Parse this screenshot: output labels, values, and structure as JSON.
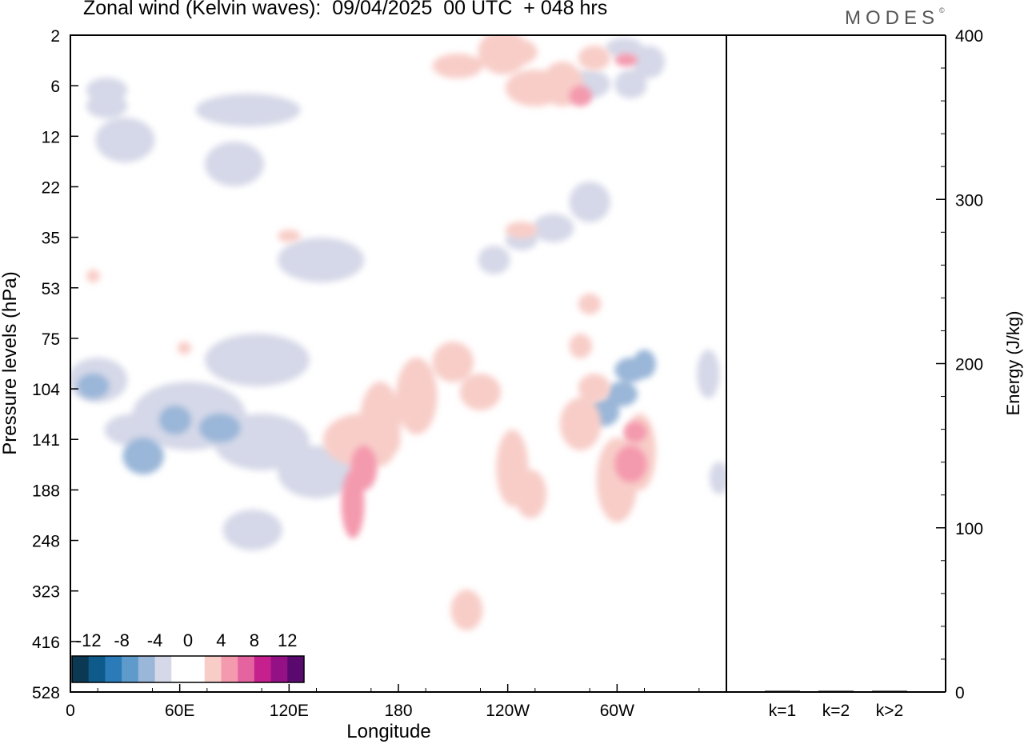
{
  "title": "Zonal wind (Kelvin waves):  09/04/2025  00 UTC  + 048 hrs",
  "logo": "MODES",
  "logo_mark": "©",
  "chart_data": [
    {
      "type": "heatmap",
      "title": "Zonal wind (Kelvin waves):  09/04/2025  00 UTC  + 048 hrs",
      "xlabel": "Longitude",
      "ylabel": "Pressure levels (hPa)",
      "x_ticks": [
        "0",
        "60E",
        "120E",
        "180",
        "120W",
        "60W"
      ],
      "x_tick_values": [
        0,
        60,
        120,
        180,
        240,
        300
      ],
      "xlim": [
        0,
        360
      ],
      "y_ticks": [
        "2",
        "6",
        "12",
        "22",
        "35",
        "53",
        "75",
        "104",
        "141",
        "188",
        "248",
        "323",
        "416",
        "528"
      ],
      "colorbar": {
        "labels": [
          "-12",
          "-8",
          "-4",
          "0",
          "4",
          "8",
          "12"
        ],
        "colors": [
          "#0b3954",
          "#0e5a8a",
          "#2b7bb9",
          "#5e9bcb",
          "#9ab6d8",
          "#d5d8e8",
          "#ffffff",
          "#ffffff",
          "#f8cdc8",
          "#f49aae",
          "#e5649f",
          "#c61f8e",
          "#941085",
          "#5a0a6e"
        ]
      },
      "fields": [
        {
          "value": -2,
          "color": "#d5d8e8",
          "cells": [
            [
              10,
              120,
              20,
              25
            ],
            [
              15,
              150,
              30,
              50
            ],
            [
              70,
              120,
              55,
              35
            ],
            [
              75,
              420,
              55,
              60
            ],
            [
              35,
              480,
              60,
              80
            ],
            [
              80,
              520,
              50,
              65
            ],
            [
              115,
              560,
              40,
              60
            ],
            [
              85,
              640,
              30,
              45
            ],
            [
              115,
              300,
              45,
              50
            ],
            [
              0,
              450,
              30,
              50
            ],
            [
              20,
              520,
              30,
              35
            ],
            [
              75,
              180,
              30,
              50
            ],
            [
              225,
              310,
              15,
              30
            ],
            [
              240,
              290,
              15,
              20
            ],
            [
              255,
              270,
              20,
              30
            ],
            [
              275,
              230,
              20,
              45
            ],
            [
              295,
              50,
              18,
              20
            ],
            [
              300,
              90,
              15,
              30
            ],
            [
              275,
              90,
              20,
              30
            ],
            [
              10,
              100,
              20,
              25
            ],
            [
              310,
              60,
              15,
              35
            ],
            [
              300,
              95,
              15,
              25
            ],
            [
              345,
              440,
              10,
              55
            ],
            [
              352,
              580,
              8,
              35
            ]
          ]
        },
        {
          "value": -6,
          "color": "#9ab6d8",
          "cells": [
            [
              30,
              550,
              20,
              40
            ],
            [
              50,
              510,
              15,
              30
            ],
            [
              72,
              520,
              20,
              30
            ],
            [
              5,
              470,
              15,
              25
            ],
            [
              285,
              500,
              15,
              30
            ],
            [
              295,
              480,
              15,
              25
            ],
            [
              300,
              450,
              15,
              25
            ],
            [
              310,
              440,
              10,
              30
            ]
          ]
        },
        {
          "value": 2,
          "color": "#f8cdc8",
          "cells": [
            [
              140,
              520,
              40,
              60
            ],
            [
              180,
              450,
              20,
              90
            ],
            [
              160,
              480,
              20,
              100
            ],
            [
              200,
              430,
              20,
              45
            ],
            [
              215,
              470,
              20,
              40
            ],
            [
              235,
              540,
              15,
              90
            ],
            [
              245,
              590,
              15,
              55
            ],
            [
              210,
              740,
              15,
              45
            ],
            [
              270,
              500,
              20,
              60
            ],
            [
              280,
              470,
              15,
              30
            ],
            [
              290,
              550,
              20,
              100
            ],
            [
              305,
              520,
              15,
              90
            ],
            [
              200,
              70,
              25,
              25
            ],
            [
              225,
              40,
              25,
              50
            ],
            [
              230,
              50,
              25,
              30
            ],
            [
              240,
              90,
              30,
              40
            ],
            [
              260,
              80,
              20,
              50
            ],
            [
              280,
              60,
              15,
              25
            ],
            [
              240,
              280,
              15,
              15
            ],
            [
              115,
              290,
              10,
              10
            ],
            [
              10,
              340,
              5,
              10
            ],
            [
              60,
              430,
              5,
              10
            ],
            [
              280,
              370,
              10,
              20
            ],
            [
              275,
              420,
              10,
              25
            ]
          ]
        },
        {
          "value": 6,
          "color": "#f49aae",
          "cells": [
            [
              150,
              590,
              10,
              80
            ],
            [
              155,
              560,
              12,
              50
            ],
            [
              300,
              560,
              15,
              40
            ],
            [
              305,
              530,
              10,
              20
            ],
            [
              275,
              110,
              10,
              20
            ],
            [
              300,
              70,
              10,
              10
            ]
          ]
        }
      ]
    },
    {
      "type": "bar",
      "categories": [
        "k=1",
        "k=2",
        "k>2"
      ],
      "values": [
        0.3,
        0.2,
        0.2
      ],
      "ylabel": "Energy (J/kg)",
      "ylim": [
        0,
        400
      ],
      "y_ticks": [
        0,
        100,
        200,
        300,
        400
      ]
    }
  ]
}
